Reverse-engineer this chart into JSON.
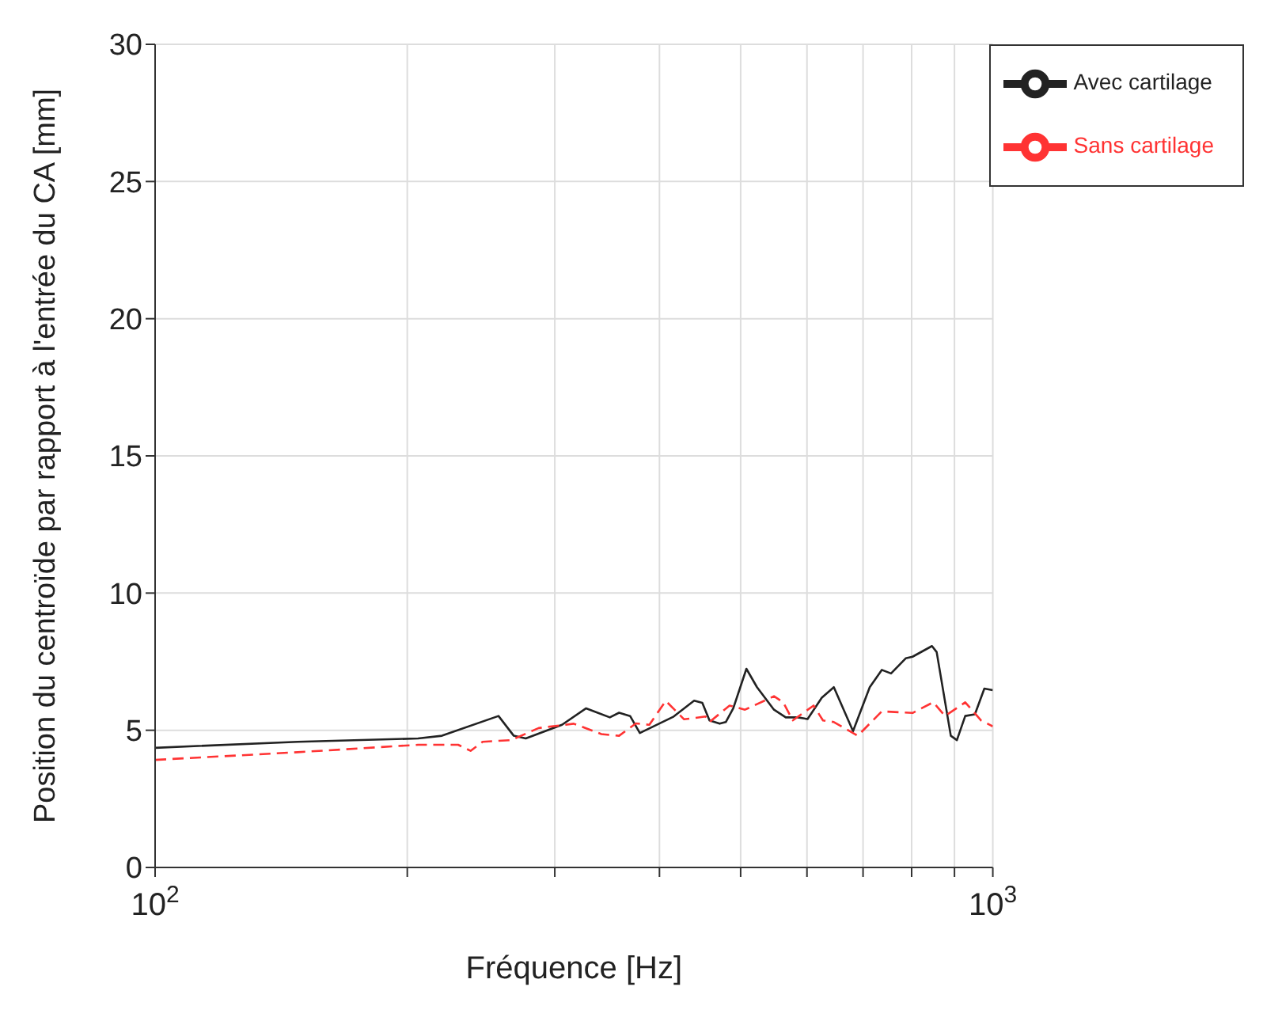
{
  "chart_data": {
    "type": "line",
    "xlabel": "Fréquence [Hz]",
    "ylabel": "Position du centroïde par rapport à l'entrée du CA [mm]",
    "log": "x",
    "grid": true,
    "legend": "top right",
    "xlim": [
      100,
      1000
    ],
    "xticks": [
      {
        "value": 100,
        "label": "10$^{2}$"
      },
      {
        "value": 200,
        "label": null
      },
      {
        "value": 300,
        "label": null
      },
      {
        "value": 400,
        "label": null
      },
      {
        "value": 500,
        "label": null
      },
      {
        "value": 600,
        "label": null
      },
      {
        "value": 700,
        "label": null
      },
      {
        "value": 800,
        "label": null
      },
      {
        "value": 900,
        "label": null
      },
      {
        "value": 1000,
        "label": "10$^{3}$"
      }
    ],
    "ylim": [
      0,
      30
    ],
    "yticks": [
      0,
      5,
      10,
      15,
      20,
      25,
      30
    ],
    "series": [
      {
        "name": "Avec cartilage",
        "color": "#222222",
        "line_style": "solid",
        "x": [
          100,
          148,
          206,
          220,
          257,
          268,
          277,
          306,
          327,
          349,
          358,
          369,
          379,
          416,
          440,
          450,
          459,
          472,
          480,
          490,
          508,
          523,
          548,
          566,
          585,
          601,
          625,
          646,
          681,
          713,
          737,
          756,
          787,
          802,
          846,
          857,
          891,
          906,
          927,
          952,
          977,
          1000
        ],
        "values": [
          4.36,
          4.58,
          4.7,
          4.8,
          5.52,
          4.8,
          4.7,
          5.2,
          5.8,
          5.47,
          5.64,
          5.52,
          4.9,
          5.5,
          6.08,
          6.0,
          5.36,
          5.24,
          5.3,
          5.8,
          7.24,
          6.57,
          5.75,
          5.47,
          5.47,
          5.41,
          6.19,
          6.57,
          4.97,
          6.57,
          7.2,
          7.07,
          7.62,
          7.68,
          8.07,
          7.85,
          4.8,
          4.64,
          5.52,
          5.58,
          6.52,
          6.46
        ]
      },
      {
        "name": "Sans cartilage",
        "color": "#ff3333",
        "line_style": "dashed",
        "x": [
          100,
          148,
          206,
          230,
          238,
          246,
          266,
          287,
          316,
          341,
          358,
          375,
          389,
          407,
          428,
          454,
          459,
          485,
          506,
          548,
          562,
          577,
          611,
          627,
          646,
          690,
          737,
          802,
          849,
          877,
          927,
          968,
          1000
        ],
        "values": [
          3.92,
          4.2,
          4.47,
          4.47,
          4.25,
          4.58,
          4.64,
          5.08,
          5.24,
          4.86,
          4.8,
          5.25,
          5.2,
          6.07,
          5.4,
          5.5,
          5.3,
          5.9,
          5.75,
          6.24,
          6.02,
          5.36,
          5.9,
          5.36,
          5.3,
          4.8,
          5.69,
          5.63,
          6.02,
          5.52,
          6.02,
          5.36,
          5.14
        ]
      }
    ]
  }
}
